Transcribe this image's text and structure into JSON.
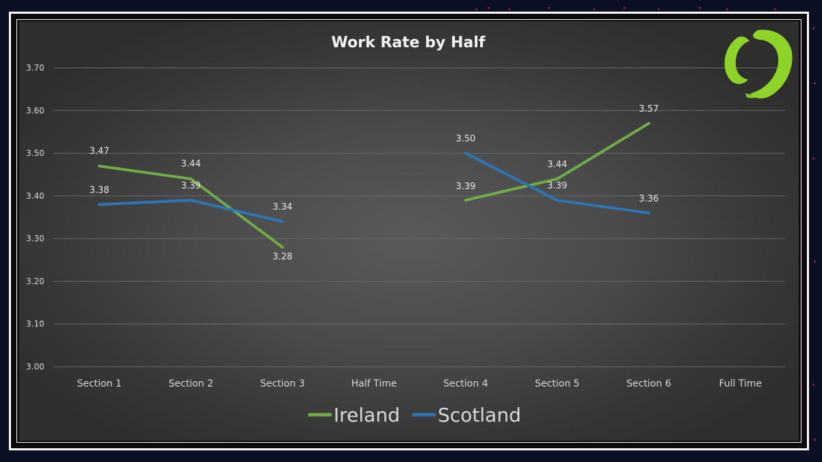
{
  "chart_data": {
    "type": "line",
    "title": "Work Rate by Half",
    "categories": [
      "Section 1",
      "Section 2",
      "Section 3",
      "Half Time",
      "Section 4",
      "Section 5",
      "Section 6",
      "Full Time"
    ],
    "ylim": [
      3.0,
      3.7
    ],
    "yticks": [
      "3.00",
      "3.10",
      "3.20",
      "3.30",
      "3.40",
      "3.50",
      "3.60",
      "3.70"
    ],
    "grid": true,
    "legend_position": "bottom",
    "series": [
      {
        "name": "Ireland",
        "color": "#70ad47",
        "values": [
          3.47,
          3.44,
          3.28,
          null,
          3.39,
          3.44,
          3.57,
          null
        ],
        "labels": [
          "3.47",
          "3.44",
          "3.28",
          "",
          "3.39",
          "3.44",
          "3.57",
          ""
        ]
      },
      {
        "name": "Scotland",
        "color": "#2e75b6",
        "values": [
          3.38,
          3.39,
          3.34,
          null,
          3.5,
          3.39,
          3.36,
          null
        ],
        "labels": [
          "3.38",
          "3.39",
          "3.34",
          "",
          "3.50",
          "3.39",
          "3.36",
          ""
        ]
      }
    ]
  },
  "logo": {
    "icon": "brand-swoosh-logo-icon",
    "color": "#8ed32a"
  }
}
